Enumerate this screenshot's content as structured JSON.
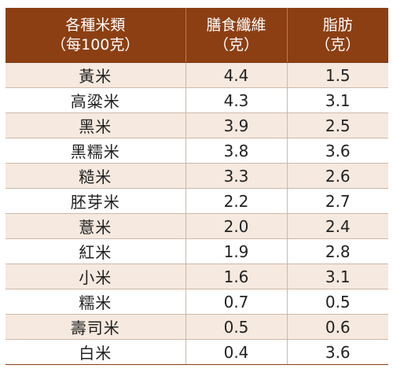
{
  "table": {
    "header": {
      "col1_line1": "各種米類",
      "col1_line2": "（每100克）",
      "col2_line1": "膳食纖維",
      "col2_line2": "（克）",
      "col3_line1": "脂肪",
      "col3_line2": "（克）"
    },
    "rows": [
      {
        "rice": "黃米",
        "fiber": "4.4",
        "fat": "1.5"
      },
      {
        "rice": "高粱米",
        "fiber": "4.3",
        "fat": "3.1"
      },
      {
        "rice": "黑米",
        "fiber": "3.9",
        "fat": "2.5"
      },
      {
        "rice": "黑糯米",
        "fiber": "3.8",
        "fat": "3.6"
      },
      {
        "rice": "糙米",
        "fiber": "3.3",
        "fat": "2.6"
      },
      {
        "rice": "胚芽米",
        "fiber": "2.2",
        "fat": "2.7"
      },
      {
        "rice": "薏米",
        "fiber": "2.0",
        "fat": "2.4"
      },
      {
        "rice": "紅米",
        "fiber": "1.9",
        "fat": "2.8"
      },
      {
        "rice": "小米",
        "fiber": "1.6",
        "fat": "3.1"
      },
      {
        "rice": "糯米",
        "fiber": "0.7",
        "fat": "0.5"
      },
      {
        "rice": "壽司米",
        "fiber": "0.5",
        "fat": "0.6"
      },
      {
        "rice": "白米",
        "fiber": "0.4",
        "fat": "3.6"
      }
    ]
  },
  "colors": {
    "header_bg": "#8c3f13",
    "stripe_bg": "#f6e9df",
    "text": "#222222"
  }
}
